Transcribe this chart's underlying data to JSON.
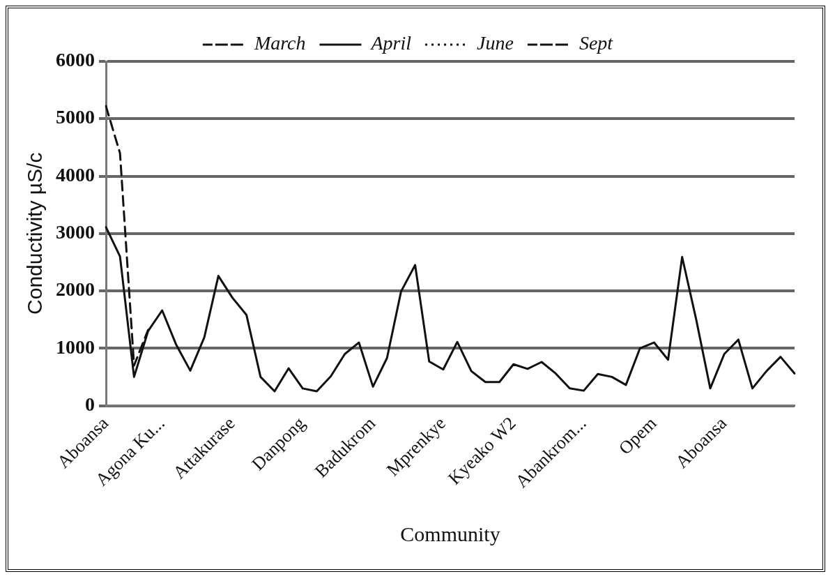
{
  "chart_data": {
    "type": "line",
    "xlabel": "Community",
    "ylabel": "Conductivity µS/c",
    "categories": [
      "Aboansa",
      null,
      null,
      null,
      "Agona Ku...",
      null,
      null,
      null,
      null,
      "Attakurase",
      null,
      null,
      null,
      null,
      "Danpong",
      null,
      null,
      null,
      null,
      "Badukrom",
      null,
      null,
      null,
      null,
      "Mprenkye",
      null,
      null,
      null,
      null,
      "Kyeako W2",
      null,
      null,
      null,
      null,
      "Abankrom...",
      null,
      null,
      null,
      null,
      "Opem",
      null,
      null,
      null,
      null,
      "Aboansa",
      null,
      null,
      null,
      null,
      null
    ],
    "series": [
      {
        "name": "March",
        "color": "#111111",
        "line_style": "dashed",
        "values": [
          5220,
          4400,
          700,
          1320,
          null,
          null,
          null,
          null,
          null,
          null,
          null,
          null,
          null,
          null,
          null,
          null,
          null,
          null,
          null,
          null,
          null,
          null,
          null,
          null,
          null,
          null,
          null,
          null,
          null,
          null,
          null,
          null,
          null,
          null,
          null,
          null,
          null,
          null,
          null,
          null,
          null,
          null,
          null,
          null,
          null,
          null,
          null,
          null,
          null,
          null
        ]
      },
      {
        "name": "April",
        "color": "#111111",
        "line_style": "solid",
        "values": [
          3110,
          2600,
          500,
          1300,
          1660,
          1060,
          610,
          1190,
          2260,
          1880,
          1580,
          500,
          250,
          650,
          300,
          250,
          510,
          900,
          1100,
          330,
          830,
          1990,
          2450,
          770,
          630,
          1110,
          600,
          410,
          410,
          720,
          640,
          760,
          560,
          300,
          260,
          550,
          500,
          360,
          1000,
          1100,
          800,
          2590,
          1500,
          300,
          900,
          1150,
          300,
          600,
          850,
          560
        ]
      },
      {
        "name": "June",
        "color": "#111111",
        "line_style": "dotted",
        "values": [
          null,
          null,
          null,
          null,
          null,
          null,
          null,
          null,
          null,
          null,
          null,
          null,
          null,
          null,
          null,
          null,
          null,
          null,
          null,
          null,
          null,
          null,
          null,
          null,
          null,
          null,
          null,
          null,
          null,
          null,
          null,
          null,
          null,
          null,
          null,
          null,
          null,
          null,
          null,
          null,
          null,
          null,
          null,
          null,
          null,
          null,
          null,
          null,
          null,
          null
        ]
      },
      {
        "name": "Sept",
        "color": "#111111",
        "line_style": "dashed",
        "values": [
          null,
          null,
          null,
          null,
          null,
          null,
          null,
          null,
          null,
          null,
          null,
          null,
          null,
          null,
          null,
          null,
          null,
          null,
          null,
          null,
          null,
          null,
          null,
          null,
          null,
          null,
          null,
          null,
          null,
          null,
          null,
          null,
          null,
          null,
          null,
          null,
          null,
          null,
          null,
          null,
          null,
          null,
          null,
          null,
          null,
          null,
          null,
          null,
          null,
          null
        ]
      }
    ],
    "ylim": [
      0,
      6000
    ],
    "yticks": [
      0,
      1000,
      2000,
      3000,
      4000,
      5000,
      6000
    ],
    "grid": "y",
    "legend": "top",
    "marker": "none"
  }
}
